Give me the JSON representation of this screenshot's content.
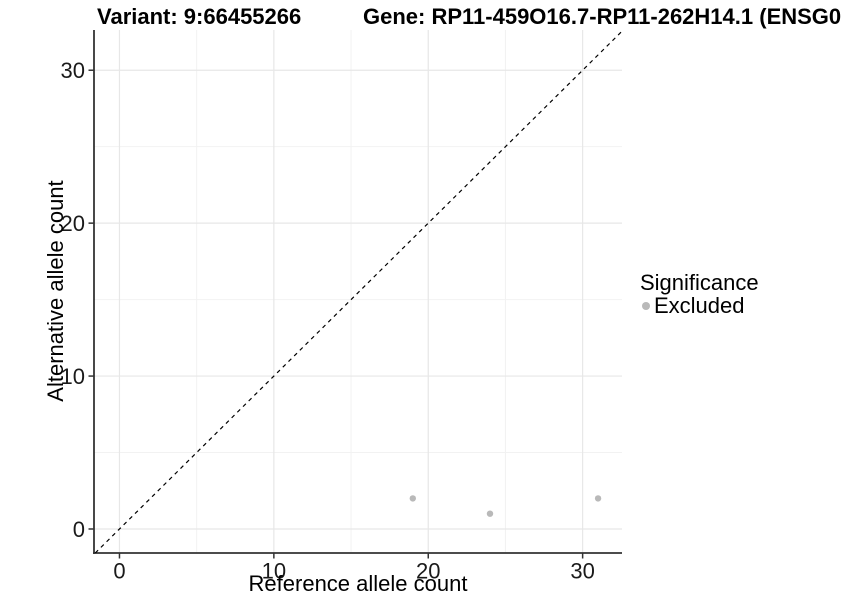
{
  "titles": {
    "variant": "Variant: 9:66455266",
    "gene": "Gene: RP11-459O16.7-RP11-262H14.1 (ENSG0"
  },
  "chart_data": {
    "type": "scatter",
    "xlabel": "Reference allele count",
    "ylabel": "Alternative allele count",
    "x_ticks": [
      0,
      10,
      20,
      30
    ],
    "x_minor_ticks": [
      5,
      15,
      25
    ],
    "y_ticks": [
      0,
      10,
      20,
      30
    ],
    "y_minor_ticks": [
      5,
      15,
      25
    ],
    "axis_range_x": [
      -1.65,
      32.55
    ],
    "axis_range_y": [
      -1.57,
      32.63
    ],
    "grid": true,
    "series": [
      {
        "name": "Excluded",
        "color": "#b9b9b9",
        "points": [
          {
            "x": 19,
            "y": 2
          },
          {
            "x": 24,
            "y": 1
          },
          {
            "x": 31,
            "y": 2
          }
        ]
      }
    ],
    "reference_line": {
      "type": "identity",
      "style": "dashed",
      "color": "#000000"
    },
    "legend": {
      "title": "Significance",
      "position": "right",
      "entries": [
        {
          "label": "Excluded",
          "color": "#b9b9b9"
        }
      ]
    }
  },
  "colors": {
    "grid_major": "#e7e7e7",
    "grid_minor": "#f2f2f2",
    "axis_line": "#333333",
    "tick_label": "#1a1a1a",
    "point": "#b9b9b9"
  }
}
